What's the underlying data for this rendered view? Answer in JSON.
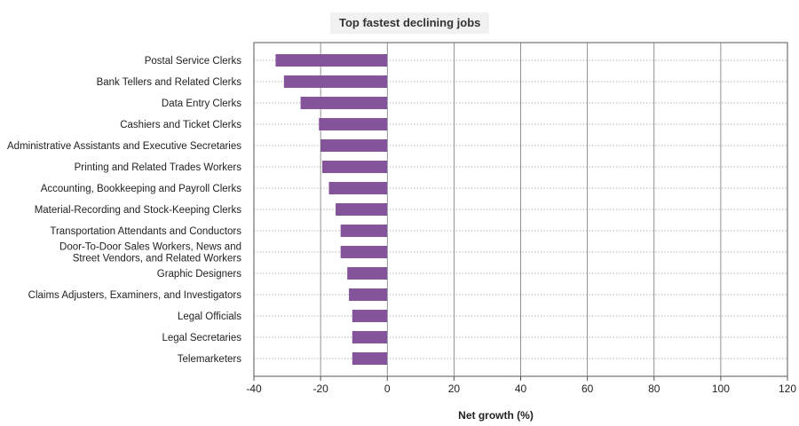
{
  "chart_data": {
    "type": "bar",
    "orientation": "horizontal",
    "title": "Top fastest declining jobs",
    "xlabel": "Net growth (%)",
    "ylabel": "",
    "xlim": [
      -40,
      120
    ],
    "xticks": [
      -40,
      -20,
      0,
      20,
      40,
      60,
      80,
      100,
      120
    ],
    "grid": true,
    "bar_color": "#83549a",
    "categories": [
      [
        "Postal Service Clerks"
      ],
      [
        "Bank Tellers and Related Clerks"
      ],
      [
        "Data Entry Clerks"
      ],
      [
        "Cashiers and Ticket Clerks"
      ],
      [
        "Administrative Assistants and Executive Secretaries"
      ],
      [
        "Printing and Related Trades Workers"
      ],
      [
        "Accounting, Bookkeeping and Payroll Clerks"
      ],
      [
        "Material-Recording and Stock-Keeping Clerks"
      ],
      [
        "Transportation Attendants and Conductors"
      ],
      [
        "Door-To-Door Sales Workers, News and",
        "Street Vendors, and Related Workers"
      ],
      [
        "Graphic Designers"
      ],
      [
        "Claims Adjusters, Examiners, and Investigators"
      ],
      [
        "Legal Officials"
      ],
      [
        "Legal Secretaries"
      ],
      [
        "Telemarketers"
      ]
    ],
    "values": [
      -33.5,
      -31,
      -26,
      -20.5,
      -20,
      -19.5,
      -17.5,
      -15.5,
      -14,
      -14,
      -12,
      -11.5,
      -10.5,
      -10.5,
      -10.5
    ]
  }
}
